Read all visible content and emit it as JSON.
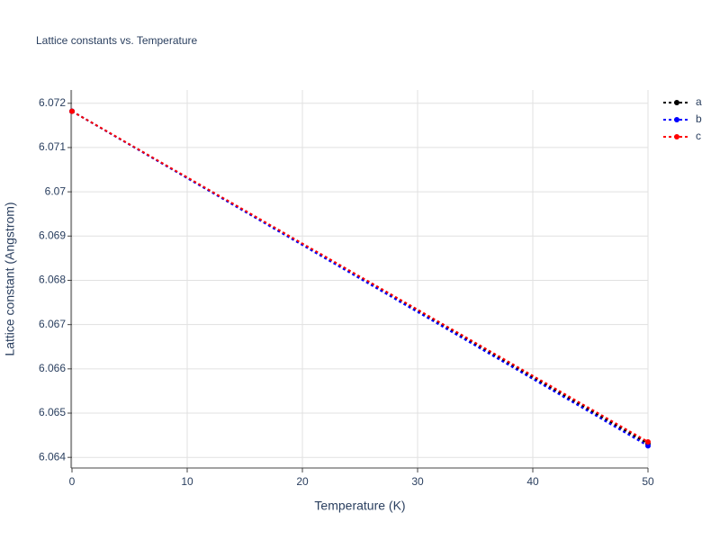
{
  "chart_data": {
    "type": "line",
    "title": "Lattice constants vs. Temperature",
    "x_label": "Temperature (K)",
    "y_label": "Lattice constant (Angstrom)",
    "x": [
      0,
      50
    ],
    "series": [
      {
        "name": "a",
        "color": "#000000",
        "values": [
          6.07182,
          6.06431
        ]
      },
      {
        "name": "b",
        "color": "#0000ff",
        "values": [
          6.07182,
          6.06426
        ]
      },
      {
        "name": "c",
        "color": "#ff0000",
        "values": [
          6.07182,
          6.06435
        ]
      }
    ],
    "xlim": [
      0,
      50
    ],
    "xticks": [
      0,
      10,
      20,
      30,
      40,
      50
    ],
    "ylim": [
      6.06376,
      6.0723
    ],
    "yticks": [
      6.064,
      6.065,
      6.066,
      6.067,
      6.068,
      6.069,
      6.07,
      6.071,
      6.072
    ],
    "grid": true,
    "legend": "top-right"
  }
}
